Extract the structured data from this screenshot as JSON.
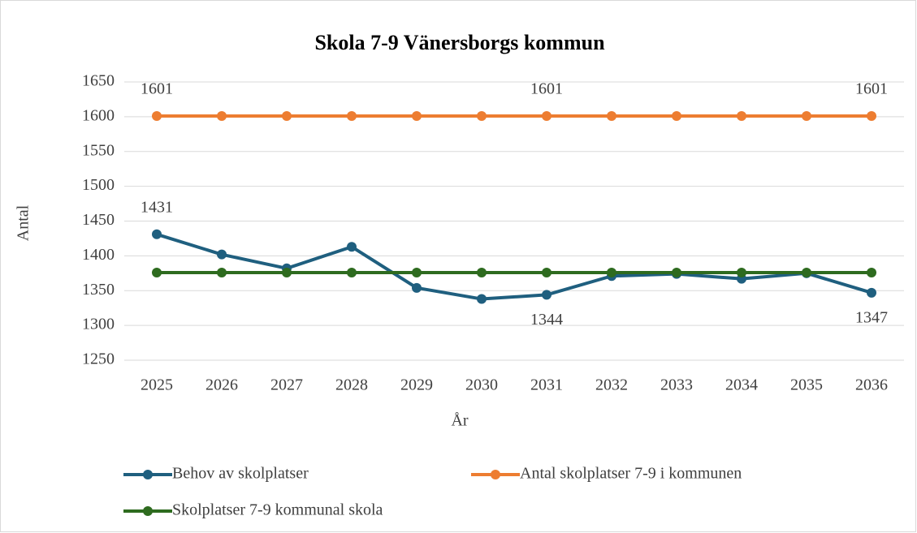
{
  "chart_data": {
    "type": "line",
    "title": "Skola 7-9 Vänersborgs kommun",
    "x_label": "År",
    "y_label": "Antal",
    "categories": [
      "2025",
      "2026",
      "2027",
      "2028",
      "2029",
      "2030",
      "2031",
      "2032",
      "2033",
      "2034",
      "2035",
      "2036"
    ],
    "series": [
      {
        "name": "Behov av skolplatser",
        "color": "#1f5f7f",
        "values": [
          1431,
          1402,
          1382,
          1413,
          1354,
          1338,
          1344,
          1371,
          1374,
          1367,
          1375,
          1347
        ],
        "value_labels": [
          "1431",
          null,
          null,
          null,
          null,
          null,
          "1344",
          null,
          null,
          null,
          null,
          "1347"
        ]
      },
      {
        "name": "Antal skolplatser 7-9 i kommunen",
        "color": "#ed7d31",
        "values": [
          1601,
          1601,
          1601,
          1601,
          1601,
          1601,
          1601,
          1601,
          1601,
          1601,
          1601,
          1601
        ],
        "value_labels": [
          "1601",
          null,
          null,
          null,
          null,
          null,
          "1601",
          null,
          null,
          null,
          null,
          "1601"
        ]
      },
      {
        "name": "Skolplatser 7-9 kommunal skola",
        "color": "#2e6b1f",
        "values": [
          1376,
          1376,
          1376,
          1376,
          1376,
          1376,
          1376,
          1376,
          1376,
          1376,
          1376,
          1376
        ]
      }
    ],
    "ylim": [
      1250,
      1650
    ],
    "yticks": [
      1250,
      1300,
      1350,
      1400,
      1450,
      1500,
      1550,
      1600,
      1650
    ],
    "grid": true,
    "legend": "bottom"
  }
}
